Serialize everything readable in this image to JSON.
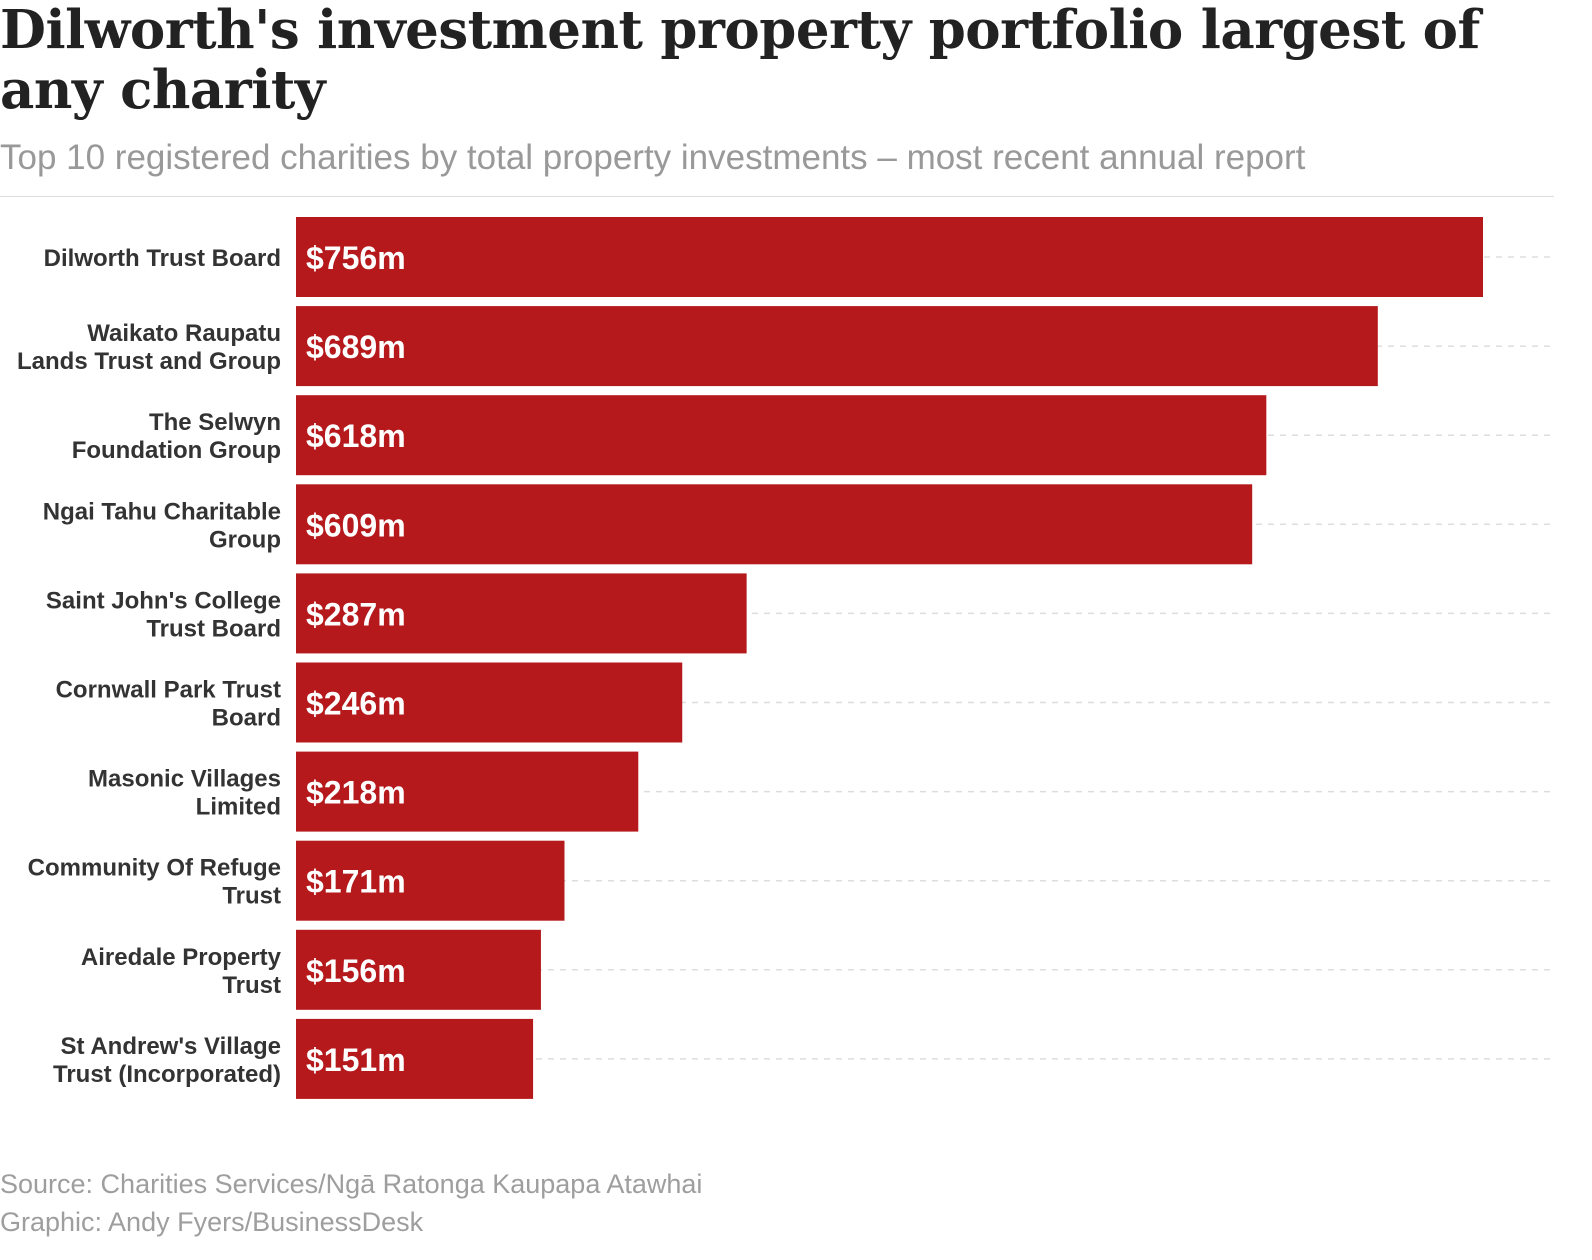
{
  "title": "Dilworth's investment property portfolio largest of any charity",
  "subtitle": "Top 10 registered charities by total property investments – most recent annual report",
  "source_line": "Source: Charities Services/Ngā Ratonga Kaupapa Atawhai",
  "graphic_line": "Graphic: Andy Fyers/BusinessDesk",
  "colors": {
    "bar": "#b5191c",
    "gridline": "#dddddd"
  },
  "chart_data": {
    "type": "bar",
    "orientation": "horizontal",
    "categories": [
      [
        "Dilworth Trust Board"
      ],
      [
        "Waikato Raupatu",
        "Lands Trust and Group"
      ],
      [
        "The Selwyn",
        "Foundation Group"
      ],
      [
        "Ngai Tahu Charitable",
        "Group"
      ],
      [
        "Saint John's College",
        "Trust Board"
      ],
      [
        "Cornwall Park Trust",
        "Board"
      ],
      [
        "Masonic Villages",
        "Limited"
      ],
      [
        "Community Of Refuge",
        "Trust"
      ],
      [
        "Airedale Property",
        "Trust"
      ],
      [
        "St Andrew's Village",
        "Trust (Incorporated)"
      ]
    ],
    "values": [
      756,
      689,
      618,
      609,
      287,
      246,
      218,
      171,
      156,
      151
    ],
    "value_labels": [
      "$756m",
      "$689m",
      "$618m",
      "$609m",
      "$287m",
      "$246m",
      "$218m",
      "$171m",
      "$156m",
      "$151m"
    ],
    "unit": "$m",
    "xlim": [
      0,
      800
    ],
    "grid": true,
    "legend": "none"
  }
}
